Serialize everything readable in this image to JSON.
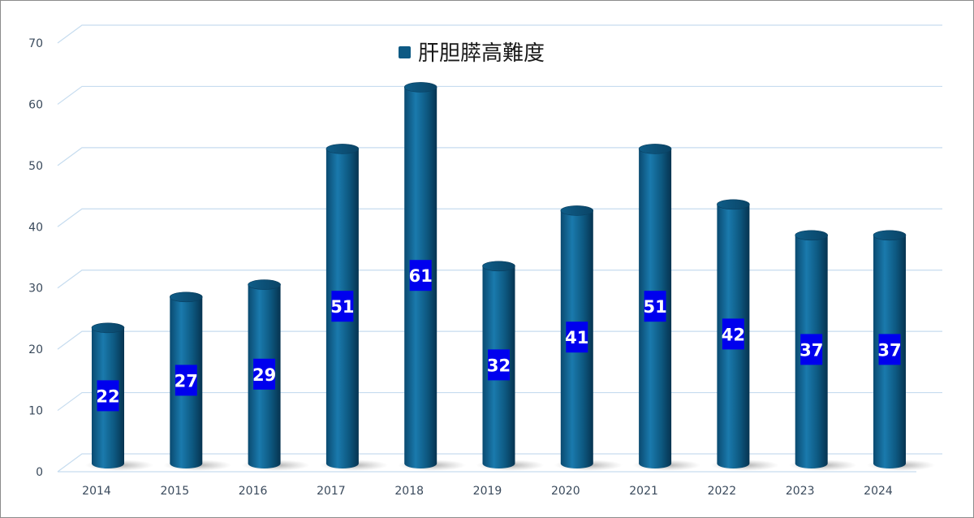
{
  "chart_data": {
    "type": "bar",
    "categories": [
      "2014",
      "2015",
      "2016",
      "2017",
      "2018",
      "2019",
      "2020",
      "2021",
      "2022",
      "2023",
      "2024"
    ],
    "series": [
      {
        "name": "肝胆膵高難度",
        "values": [
          22,
          27,
          29,
          51,
          61,
          32,
          41,
          51,
          42,
          37,
          37
        ]
      }
    ],
    "ylim": [
      0,
      70
    ],
    "yticks": [
      "0",
      "10",
      "20",
      "30",
      "40",
      "50",
      "60",
      "70"
    ],
    "grid": true,
    "legend_position": "top",
    "bar_style": "3d-cylinder",
    "colors": {
      "bar": "#0e5a84",
      "bar_highlight": "#1d7fb0",
      "bar_dark": "#073a58",
      "data_label_bg": "#0000ee",
      "data_label_text": "#ffffff",
      "gridline": "#c6dcef",
      "axis_text": "#3a4a5c"
    }
  }
}
